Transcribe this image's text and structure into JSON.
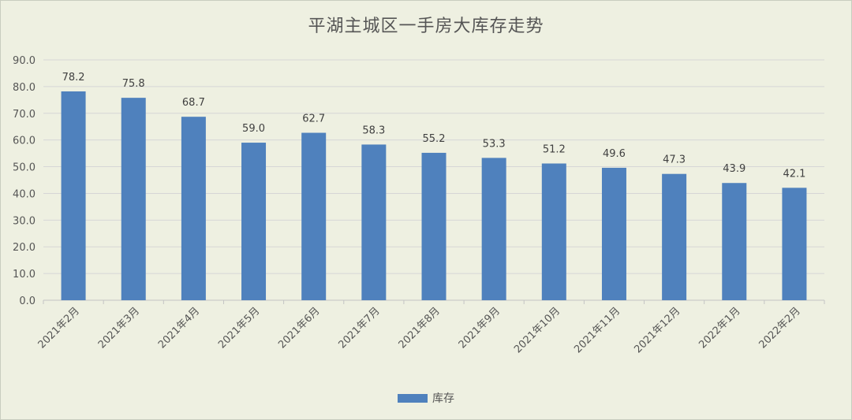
{
  "chart_data": {
    "type": "bar",
    "title": "平湖主城区一手房大库存走势",
    "categories": [
      "2021年2月",
      "2021年3月",
      "2021年4月",
      "2021年5月",
      "2021年6月",
      "2021年7月",
      "2021年8月",
      "2021年9月",
      "2021年10月",
      "2021年11月",
      "2021年12月",
      "2022年1月",
      "2022年2月"
    ],
    "series": [
      {
        "name": "库存",
        "values": [
          78.2,
          75.8,
          68.7,
          59.0,
          62.7,
          58.3,
          55.2,
          53.3,
          51.2,
          49.6,
          47.3,
          43.9,
          42.1
        ],
        "color": "#4f81bd"
      }
    ],
    "xlabel": "",
    "ylabel": "",
    "ylim": [
      0,
      90
    ],
    "yticks": [
      "0.0",
      "10.0",
      "20.0",
      "30.0",
      "40.0",
      "50.0",
      "60.0",
      "70.0",
      "80.0",
      "90.0"
    ],
    "grid": true,
    "legend_position": "bottom",
    "background": "#eef0e1"
  }
}
